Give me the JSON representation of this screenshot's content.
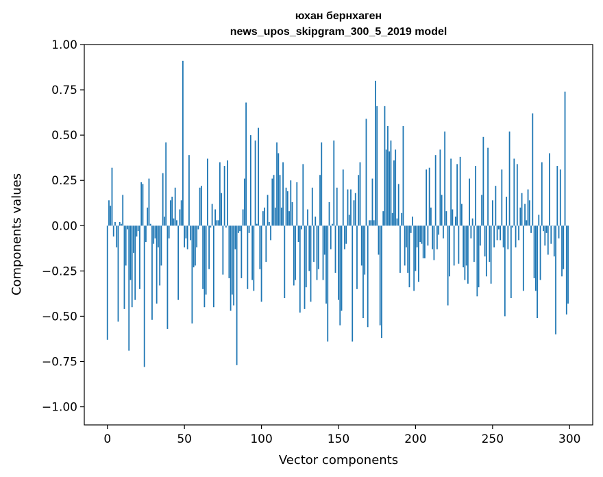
{
  "chart_data": {
    "type": "bar",
    "title_line1": "юхан бернхаген",
    "title_line2": "news_upos_skipgram_300_5_2019 model",
    "xlabel": "Vector components",
    "ylabel": "Components values",
    "xlim": [
      -15,
      315
    ],
    "ylim": [
      -1.1,
      1.0
    ],
    "xticks": [
      0,
      50,
      100,
      150,
      200,
      250,
      300
    ],
    "xtick_labels": [
      "0",
      "50",
      "100",
      "150",
      "200",
      "250",
      "300"
    ],
    "yticks": [
      1.0,
      0.75,
      0.5,
      0.25,
      0.0,
      -0.25,
      -0.5,
      -0.75,
      -1.0
    ],
    "ytick_labels": [
      "1.00",
      "0.75",
      "0.50",
      "0.25",
      "0.00",
      "−0.25",
      "−0.50",
      "−0.75",
      "−1.00"
    ],
    "bar_color": "#1f77b4",
    "values": [
      -0.63,
      0.14,
      0.11,
      0.32,
      -0.06,
      0.02,
      -0.12,
      -0.53,
      0.02,
      0.01,
      0.17,
      -0.46,
      -0.22,
      -0.02,
      -0.69,
      -0.3,
      -0.45,
      -0.15,
      -0.41,
      -0.06,
      -0.03,
      -0.35,
      0.24,
      0.23,
      -0.78,
      -0.09,
      0.1,
      0.26,
      0.01,
      -0.52,
      -0.1,
      -0.07,
      -0.43,
      -0.12,
      -0.33,
      -0.22,
      0.29,
      0.05,
      0.46,
      -0.57,
      -0.07,
      0.14,
      0.16,
      0.04,
      0.21,
      0.03,
      -0.41,
      0.09,
      0.14,
      0.91,
      -0.12,
      -0.07,
      -0.13,
      0.39,
      -0.08,
      -0.54,
      -0.23,
      -0.22,
      -0.12,
      -0.02,
      0.21,
      0.22,
      -0.35,
      -0.45,
      -0.38,
      0.37,
      -0.24,
      -0.01,
      0.12,
      -0.45,
      0.09,
      0.03,
      0.03,
      0.35,
      0.18,
      -0.27,
      0.33,
      -0.01,
      0.36,
      -0.29,
      -0.47,
      -0.38,
      -0.44,
      -0.13,
      -0.77,
      -0.04,
      -0.03,
      -0.29,
      0.09,
      0.26,
      0.68,
      -0.35,
      -0.04,
      0.5,
      -0.3,
      -0.36,
      0.47,
      0.01,
      0.54,
      -0.24,
      -0.42,
      0.08,
      0.1,
      -0.2,
      0.17,
      0.02,
      -0.08,
      0.26,
      0.28,
      0.1,
      0.46,
      0.4,
      0.28,
      0.1,
      0.35,
      -0.4,
      0.21,
      0.19,
      0.08,
      0.25,
      0.13,
      -0.33,
      -0.3,
      0.24,
      -0.09,
      -0.48,
      -0.02,
      0.34,
      -0.46,
      -0.34,
      0.09,
      -0.25,
      -0.42,
      0.21,
      -0.2,
      0.05,
      -0.3,
      -0.24,
      0.28,
      0.46,
      -0.3,
      -0.16,
      -0.43,
      -0.64,
      0.13,
      -0.13,
      0.01,
      0.47,
      -0.26,
      0.21,
      -0.41,
      -0.55,
      -0.47,
      0.31,
      -0.13,
      -0.1,
      0.2,
      0.06,
      0.2,
      -0.64,
      0.14,
      0.18,
      -0.35,
      0.28,
      0.35,
      -0.22,
      -0.51,
      -0.27,
      0.59,
      -0.56,
      0.03,
      0.03,
      0.26,
      0.03,
      0.8,
      0.66,
      -0.16,
      -0.55,
      -0.62,
      0.08,
      0.66,
      0.42,
      0.55,
      0.41,
      0.47,
      0.07,
      0.36,
      0.42,
      0.04,
      0.23,
      -0.26,
      0.07,
      0.55,
      -0.22,
      -0.12,
      -0.26,
      -0.34,
      -0.04,
      0.05,
      -0.36,
      -0.25,
      -0.12,
      -0.31,
      -0.09,
      -0.1,
      -0.18,
      -0.18,
      0.31,
      -0.11,
      0.32,
      0.1,
      -0.13,
      -0.19,
      0.39,
      -0.13,
      -0.05,
      0.42,
      0.17,
      -0.07,
      0.52,
      0.08,
      -0.44,
      -0.28,
      0.37,
      0.09,
      -0.22,
      0.05,
      0.34,
      -0.21,
      0.38,
      0.12,
      -0.23,
      -0.3,
      -0.22,
      -0.32,
      0.26,
      -0.07,
      0.04,
      -0.2,
      0.33,
      -0.39,
      -0.34,
      -0.11,
      0.17,
      0.49,
      -0.17,
      -0.28,
      0.43,
      -0.2,
      -0.32,
      0.14,
      -0.12,
      0.22,
      -0.08,
      -0.02,
      -0.08,
      0.31,
      -0.12,
      -0.5,
      0.16,
      -0.13,
      0.52,
      -0.4,
      -0.01,
      0.37,
      -0.12,
      0.34,
      -0.08,
      0.1,
      0.18,
      -0.36,
      0.12,
      0.03,
      0.2,
      0.14,
      -0.04,
      0.62,
      -0.29,
      -0.36,
      -0.51,
      0.06,
      -0.3,
      0.35,
      -0.03,
      -0.11,
      -0.04,
      -0.16,
      0.4,
      -0.1,
      0.0,
      -0.17,
      -0.6,
      0.33,
      -0.07,
      0.31,
      -0.28,
      -0.24,
      0.74,
      -0.49,
      -0.43
    ]
  }
}
